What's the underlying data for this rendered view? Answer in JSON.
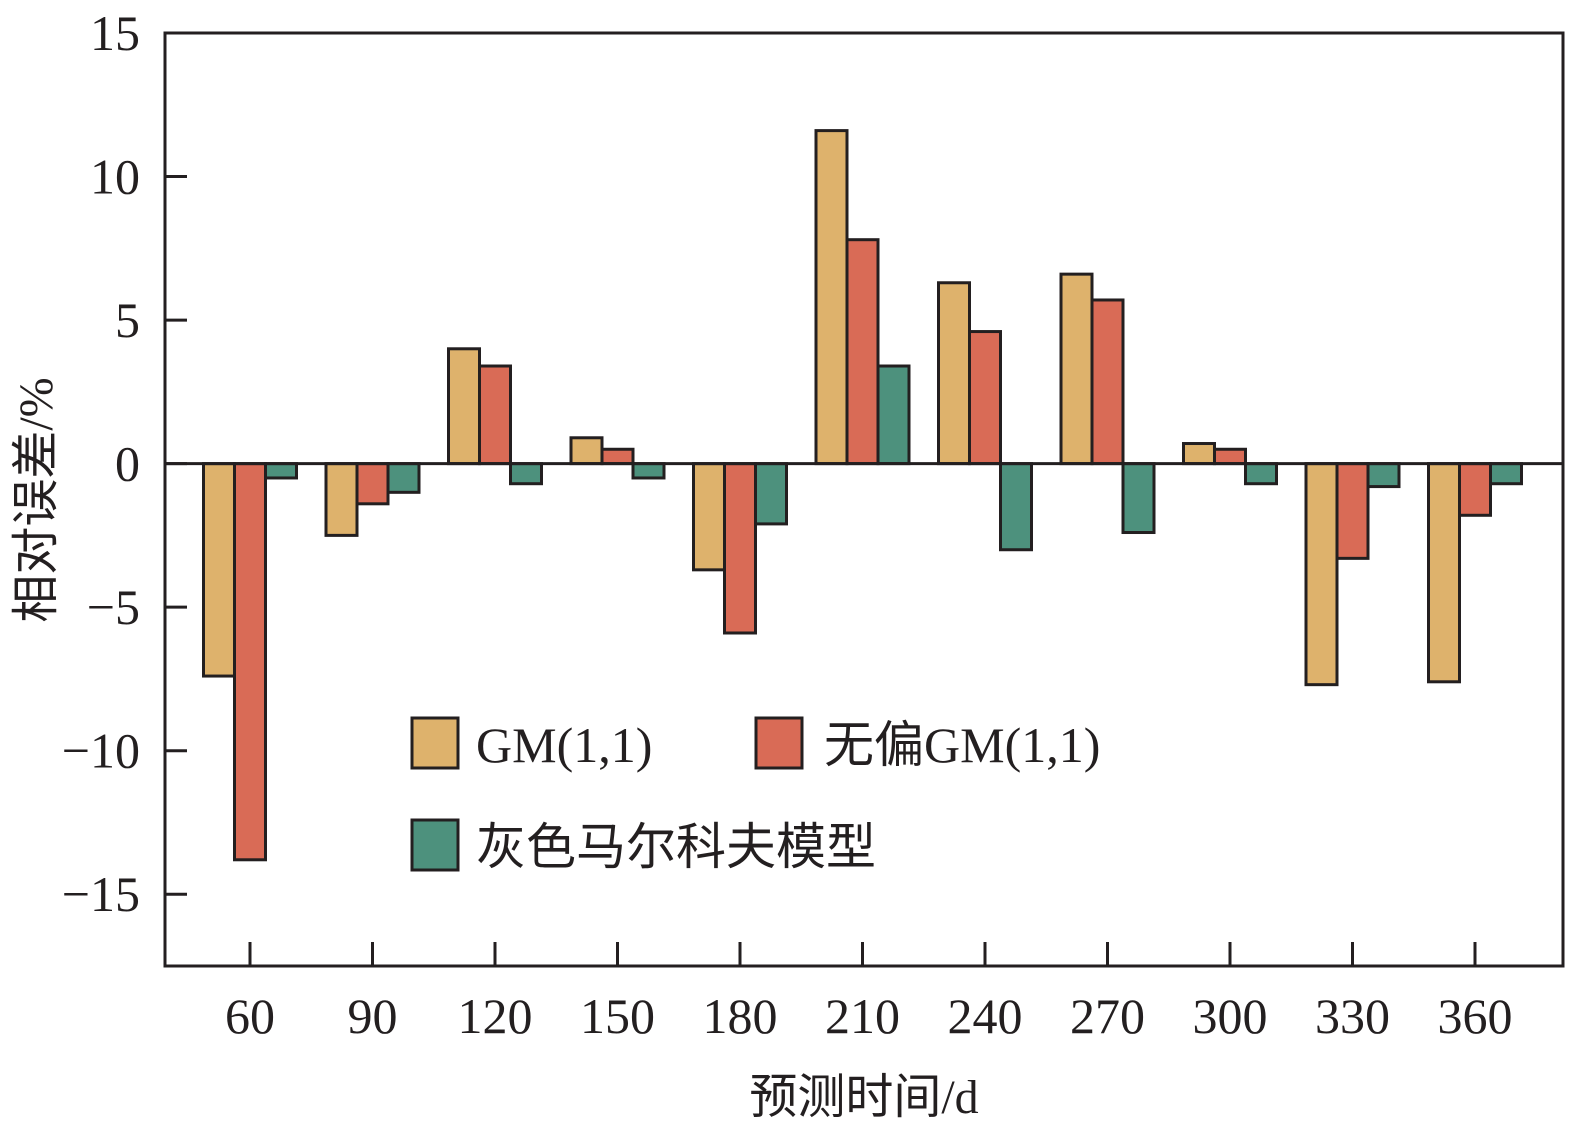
{
  "chart_data": {
    "type": "bar",
    "title": "",
    "xlabel": "预测时间/d",
    "ylabel": "相对误差/%",
    "ylim": [
      -17.5,
      15
    ],
    "yticks": [
      "15",
      "10",
      "5",
      "0",
      "−5",
      "−10",
      "−15"
    ],
    "ytick_values": [
      15,
      10,
      5,
      0,
      -5,
      -10,
      -15
    ],
    "categories": [
      "60",
      "90",
      "120",
      "150",
      "180",
      "210",
      "240",
      "270",
      "300",
      "330",
      "360"
    ],
    "series": [
      {
        "name": "GM(1,1)",
        "color": "#deb26c",
        "values": [
          -7.4,
          -2.5,
          4.0,
          0.9,
          -3.7,
          11.6,
          6.3,
          6.6,
          0.7,
          -7.7,
          -7.6
        ]
      },
      {
        "name": "无偏GM(1,1)",
        "color": "#d96b56",
        "values": [
          -13.8,
          -1.4,
          3.4,
          0.5,
          -5.9,
          7.8,
          4.6,
          5.7,
          0.5,
          -3.3,
          -1.8
        ]
      },
      {
        "name": "灰色马尔科夫模型",
        "color": "#4d917d",
        "values": [
          -0.5,
          -1.0,
          -0.7,
          -0.5,
          -2.1,
          3.4,
          -3.0,
          -2.4,
          -0.7,
          -0.8,
          -0.7
        ]
      }
    ],
    "grid": false,
    "legend_position": "lower-center, inside plot"
  }
}
